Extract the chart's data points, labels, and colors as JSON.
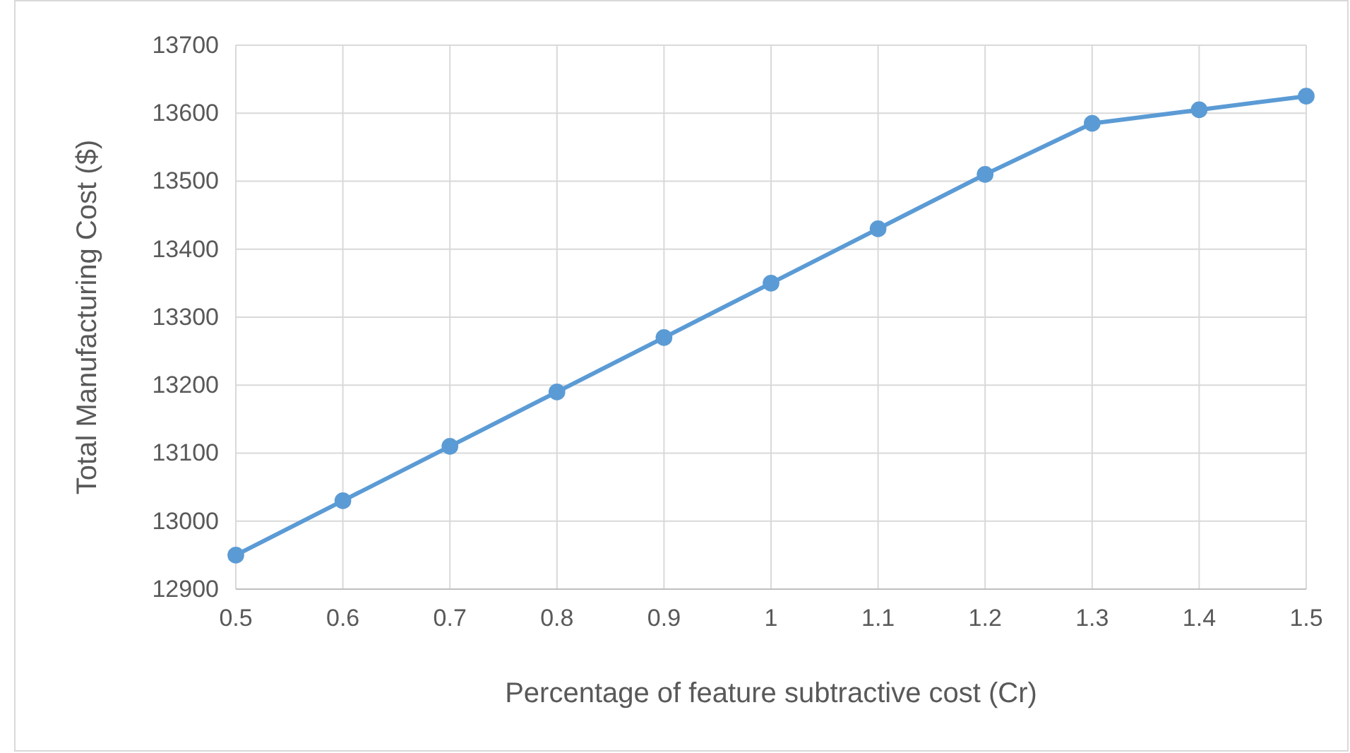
{
  "chart_data": {
    "type": "line",
    "xlabel": "Percentage of feature subtractive cost (Cr)",
    "ylabel": "Total Manufacturing Cost ($)",
    "x": [
      0.5,
      0.6,
      0.7,
      0.8,
      0.9,
      1,
      1.1,
      1.2,
      1.3,
      1.4,
      1.5
    ],
    "series": [
      {
        "color": "#5b9bd5",
        "values": [
          12950,
          13030,
          13110,
          13190,
          13270,
          13350,
          13430,
          13510,
          13585,
          13605,
          13625
        ]
      }
    ],
    "xlim": [
      0.5,
      1.5
    ],
    "xticks": [
      0.5,
      0.6,
      0.7,
      0.8,
      0.9,
      1,
      1.1,
      1.2,
      1.3,
      1.4,
      1.5
    ],
    "ylim": [
      12900,
      13700
    ],
    "yticks": [
      12900,
      13000,
      13100,
      13200,
      13300,
      13400,
      13500,
      13600,
      13700
    ],
    "grid": true,
    "marker": "circle",
    "line_style": "solid"
  }
}
